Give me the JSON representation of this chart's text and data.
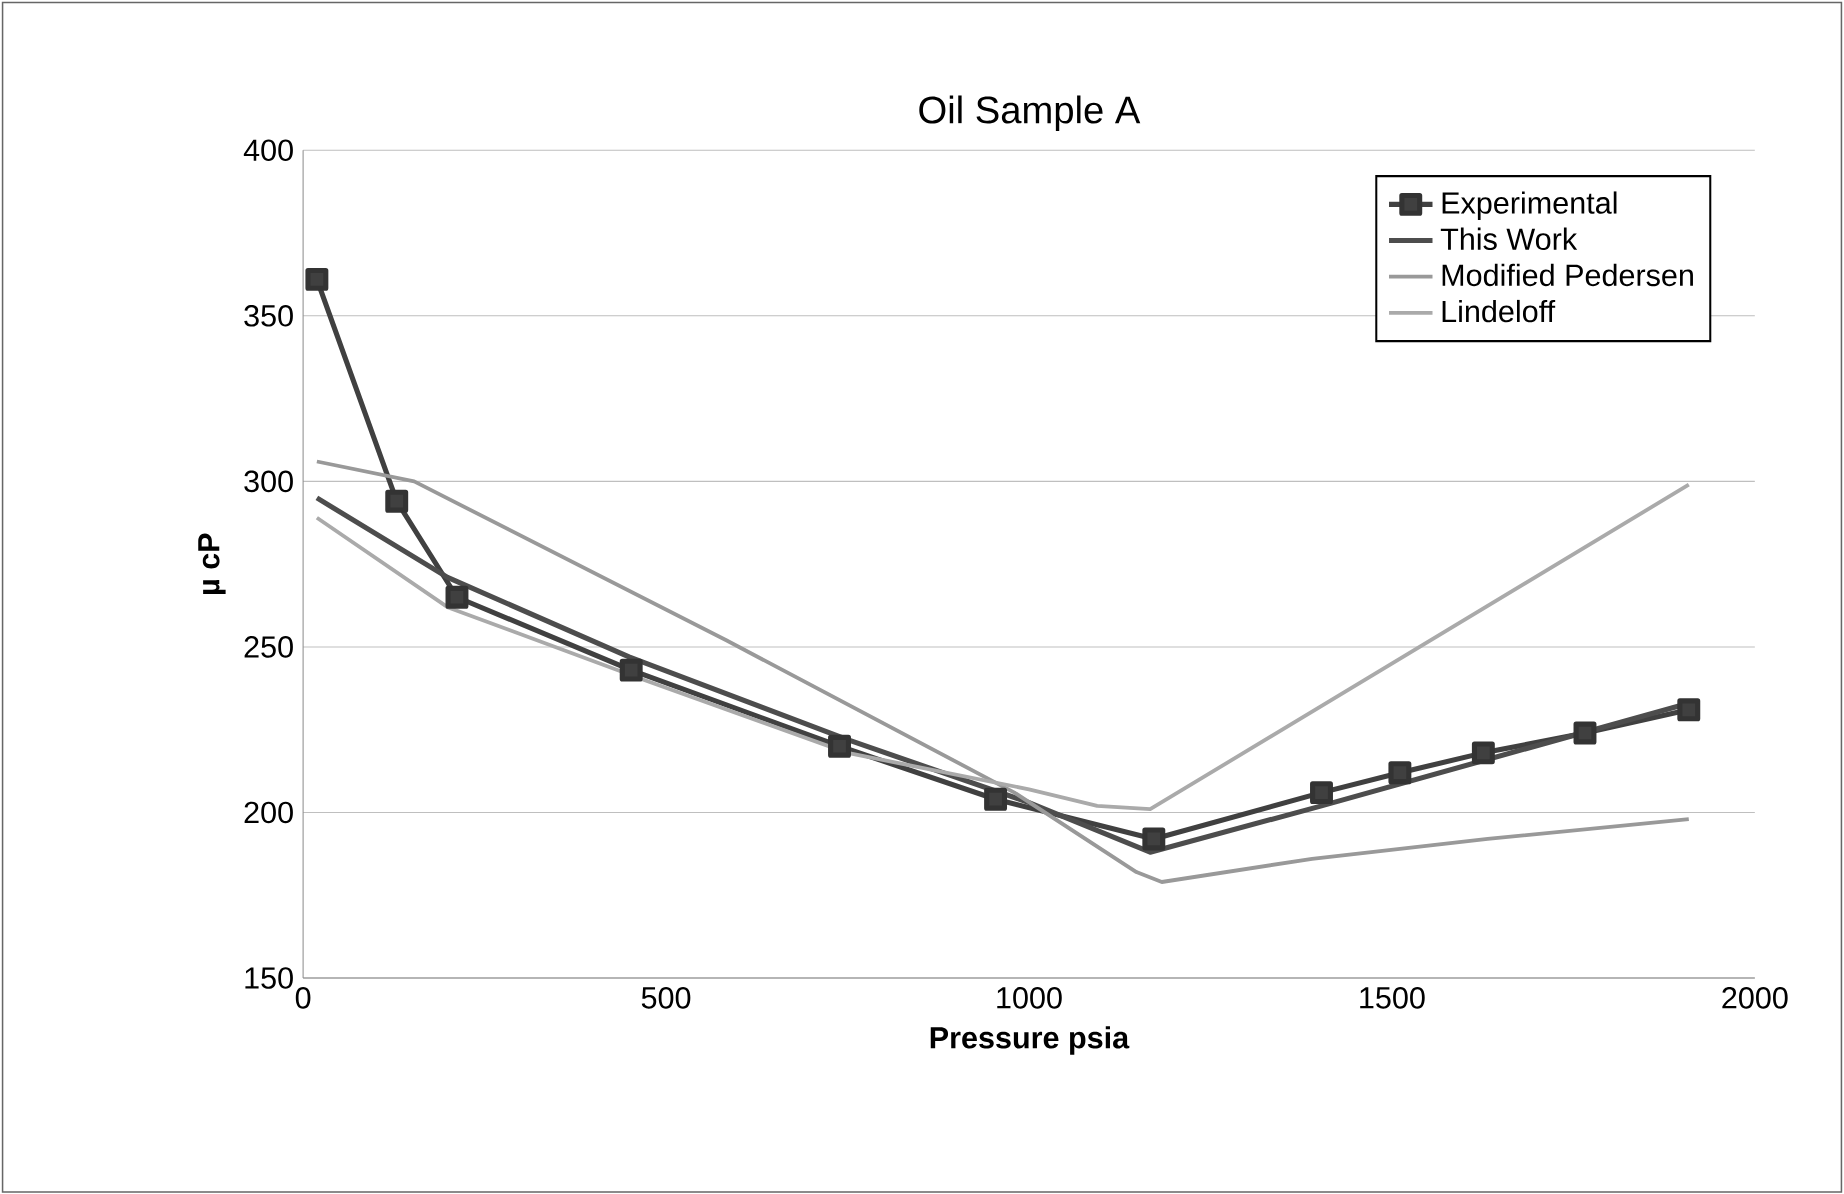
{
  "chart_data": {
    "type": "line",
    "title": "Oil Sample A",
    "xlabel": "Pressure psia",
    "ylabel": "µ cP",
    "xlim": [
      0,
      2000
    ],
    "xticks": [
      0,
      500,
      1000,
      1500,
      2000
    ],
    "ylim": [
      150,
      400
    ],
    "yticks": [
      150,
      200,
      250,
      300,
      350,
      400
    ],
    "grid": "y",
    "legend": "top right",
    "series": [
      {
        "name": "Experimental",
        "color": "#404040",
        "marker": "square",
        "x": [
          19,
          129,
          212,
          452,
          739,
          954,
          1172,
          1403,
          1511,
          1626,
          1766,
          1909
        ],
        "values": [
          361,
          294,
          265,
          243,
          220,
          204,
          192,
          206,
          212,
          218,
          224,
          231
        ]
      },
      {
        "name": "This Work",
        "color": "#4d4d4d",
        "x": [
          19,
          199,
          449,
          750,
          1000,
          1167,
          1403,
          1909
        ],
        "values": [
          295,
          271,
          247,
          222,
          203,
          188,
          202,
          233
        ]
      },
      {
        "name": "Modified Pedersen",
        "color": "#999999",
        "x": [
          19,
          153,
          583,
          980,
          1148,
          1183,
          1390,
          1632,
          1909
        ],
        "values": [
          306,
          300,
          252,
          206,
          182,
          179,
          186,
          192,
          198
        ]
      },
      {
        "name": "Lindeloff",
        "color": "#aaaaaa",
        "x": [
          19,
          199,
          470,
          750,
          1000,
          1094,
          1167,
          1909
        ],
        "values": [
          289,
          262,
          240,
          218,
          207,
          202,
          201,
          299
        ]
      }
    ]
  }
}
